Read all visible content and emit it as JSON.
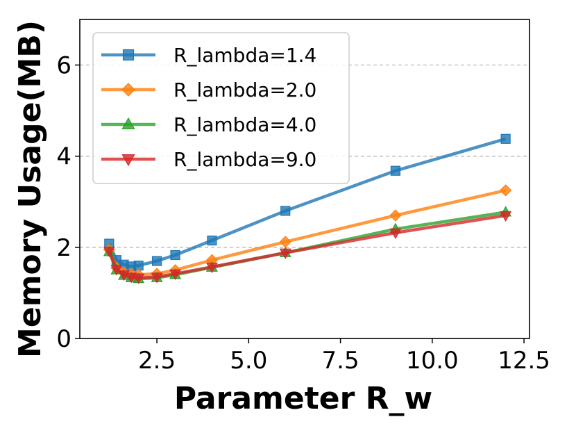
{
  "chart_data": {
    "type": "line",
    "title": "",
    "xlabel": "Parameter R_w",
    "ylabel": "Memory Usage(MB)",
    "xlim": [
      0.4,
      12.65
    ],
    "ylim": [
      0,
      7
    ],
    "x_ticks": [
      2.5,
      5.0,
      7.5,
      10.0,
      12.5
    ],
    "x_tick_labels": [
      "2.5",
      "5.0",
      "7.5",
      "10.0",
      "12.5"
    ],
    "y_ticks": [
      0,
      2,
      4,
      6
    ],
    "y_tick_labels": [
      "0",
      "2",
      "4",
      "6"
    ],
    "grid": "horizontal dashed",
    "legend_position": "top-left",
    "x": [
      1.2,
      1.4,
      1.6,
      1.8,
      2.0,
      2.5,
      3.0,
      4.0,
      6.0,
      9.0,
      12.0
    ],
    "series": [
      {
        "name": "R_lambda=1.4",
        "color": "#1f77b4",
        "marker": "square",
        "values": [
          2.08,
          1.72,
          1.62,
          1.58,
          1.6,
          1.7,
          1.83,
          2.15,
          2.8,
          3.68,
          4.38
        ]
      },
      {
        "name": "R_lambda=2.0",
        "color": "#ff7f0e",
        "marker": "diamond",
        "values": [
          1.95,
          1.55,
          1.45,
          1.42,
          1.4,
          1.42,
          1.5,
          1.72,
          2.12,
          2.7,
          3.25
        ]
      },
      {
        "name": "R_lambda=4.0",
        "color": "#2ca02c",
        "marker": "triangle-up",
        "values": [
          1.9,
          1.5,
          1.38,
          1.33,
          1.31,
          1.33,
          1.4,
          1.56,
          1.88,
          2.4,
          2.77
        ]
      },
      {
        "name": "R_lambda=9.0",
        "color": "#d62728",
        "marker": "triangle-down",
        "values": [
          1.92,
          1.52,
          1.4,
          1.35,
          1.33,
          1.35,
          1.42,
          1.57,
          1.88,
          2.32,
          2.7
        ]
      }
    ]
  }
}
